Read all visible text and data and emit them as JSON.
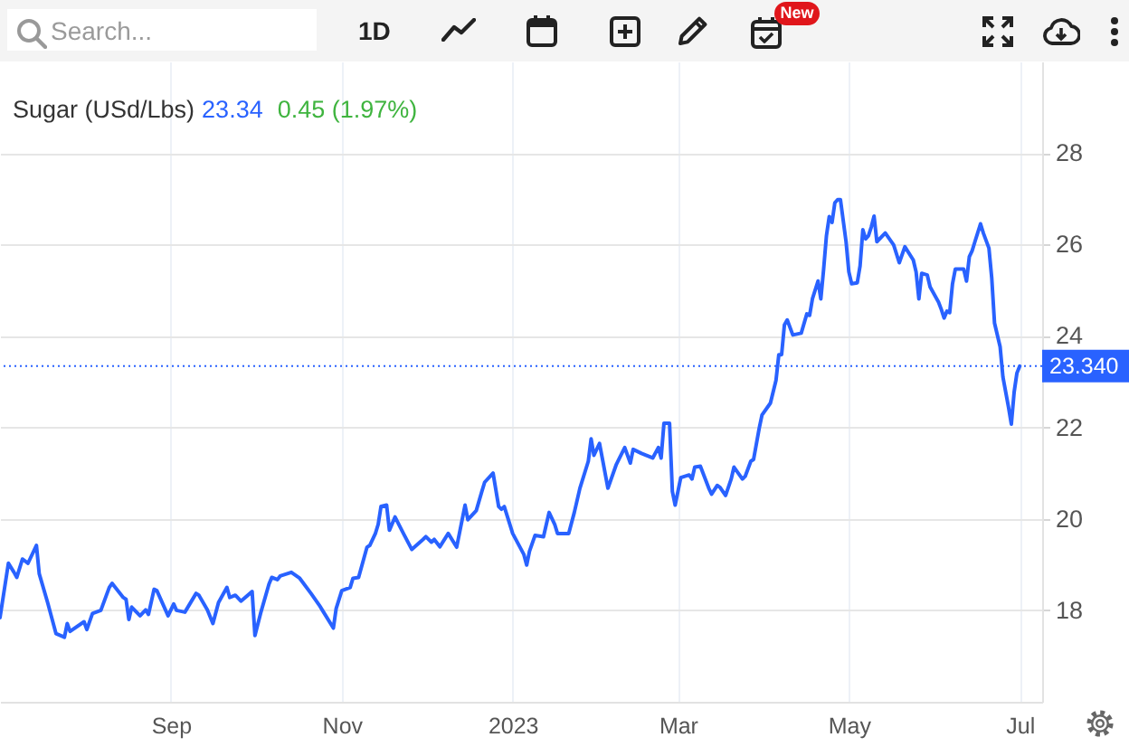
{
  "chart_data": {
    "type": "line",
    "title": "Sugar (USd/Lbs)",
    "annotations": [
      "23.34",
      "0.45 (1.97%)",
      "Search...",
      "1D",
      "New"
    ],
    "x": [
      "2022-07-02",
      "2022-07-05",
      "2022-07-07",
      "2022-07-08",
      "2022-07-10",
      "2022-07-12",
      "2022-07-15",
      "2022-07-16",
      "2022-07-19",
      "2022-07-22",
      "2022-07-25",
      "2022-07-26",
      "2022-07-27",
      "2022-08-01",
      "2022-08-02",
      "2022-08-04",
      "2022-08-07",
      "2022-08-10",
      "2022-08-11",
      "2022-08-15",
      "2022-08-16",
      "2022-08-17",
      "2022-08-18",
      "2022-08-21",
      "2022-08-23",
      "2022-08-24",
      "2022-08-26",
      "2022-08-27",
      "2022-08-31",
      "2022-09-02",
      "2022-09-03",
      "2022-09-06",
      "2022-09-10",
      "2022-09-11",
      "2022-09-14",
      "2022-09-16",
      "2022-09-18",
      "2022-09-21",
      "2022-09-22",
      "2022-09-24",
      "2022-09-26",
      "2022-09-30",
      "2022-10-01",
      "2022-10-03",
      "2022-10-06",
      "2022-10-07",
      "2022-10-09",
      "2022-10-10",
      "2022-10-14",
      "2022-10-17",
      "2022-10-21",
      "2022-10-24",
      "2022-10-25",
      "2022-10-29",
      "2022-10-30",
      "2022-11-01",
      "2022-11-04",
      "2022-11-05",
      "2022-11-07",
      "2022-11-10",
      "2022-11-11",
      "2022-11-13",
      "2022-11-14",
      "2022-11-15",
      "2022-11-17",
      "2022-11-18",
      "2022-11-20",
      "2022-11-23",
      "2022-11-26",
      "2022-11-30",
      "2022-12-01",
      "2022-12-03",
      "2022-12-04",
      "2022-12-06",
      "2022-12-09",
      "2022-12-12",
      "2022-12-15",
      "2022-12-16",
      "2022-12-19",
      "2022-12-21",
      "2022-12-22",
      "2022-12-25",
      "2022-12-27",
      "2022-12-28",
      "2022-12-29",
      "2023-01-01",
      "2023-01-05",
      "2023-01-06",
      "2023-01-07",
      "2023-01-09",
      "2023-01-12",
      "2023-01-14",
      "2023-01-16",
      "2023-01-17",
      "2023-01-21",
      "2023-01-23",
      "2023-01-25",
      "2023-01-28",
      "2023-01-29",
      "2023-01-30",
      "2023-02-01",
      "2023-02-04",
      "2023-02-07",
      "2023-02-10",
      "2023-02-12",
      "2023-02-13",
      "2023-02-16",
      "2023-02-20",
      "2023-02-22",
      "2023-02-23",
      "2023-02-24",
      "2023-02-26",
      "2023-02-27",
      "2023-02-28",
      "2023-03-02",
      "2023-03-05",
      "2023-03-06",
      "2023-03-07",
      "2023-03-09",
      "2023-03-12",
      "2023-03-13",
      "2023-03-15",
      "2023-03-16",
      "2023-03-18",
      "2023-03-20",
      "2023-03-21",
      "2023-03-24",
      "2023-03-25",
      "2023-03-27",
      "2023-03-28",
      "2023-03-30",
      "2023-03-31",
      "2023-04-03",
      "2023-04-05",
      "2023-04-06",
      "2023-04-07",
      "2023-04-08",
      "2023-04-09",
      "2023-04-11",
      "2023-04-14",
      "2023-04-16",
      "2023-04-17",
      "2023-04-18",
      "2023-04-20",
      "2023-04-21",
      "2023-04-22",
      "2023-04-23",
      "2023-04-24",
      "2023-04-25",
      "2023-04-26",
      "2023-04-27",
      "2023-04-28",
      "2023-04-30",
      "2023-05-01",
      "2023-05-02",
      "2023-05-04",
      "2023-05-05",
      "2023-05-06",
      "2023-05-07",
      "2023-05-08",
      "2023-05-09",
      "2023-05-10",
      "2023-05-11",
      "2023-05-14",
      "2023-05-17",
      "2023-05-19",
      "2023-05-21",
      "2023-05-24",
      "2023-05-25",
      "2023-05-26",
      "2023-05-27",
      "2023-05-29",
      "2023-05-30",
      "2023-06-02",
      "2023-06-03",
      "2023-06-04",
      "2023-06-05",
      "2023-06-06",
      "2023-06-07",
      "2023-06-08",
      "2023-06-11",
      "2023-06-12",
      "2023-06-13",
      "2023-06-14",
      "2023-06-15",
      "2023-06-17",
      "2023-06-18",
      "2023-06-20",
      "2023-06-21",
      "2023-06-22",
      "2023-06-24",
      "2023-06-25",
      "2023-06-27",
      "2023-06-28",
      "2023-06-29",
      "2023-06-30",
      "2023-07-01"
    ],
    "series": [
      {
        "color": "#2962ff",
        "values": [
          17.84,
          19.03,
          18.83,
          18.72,
          19.12,
          19.03,
          19.42,
          18.8,
          18.17,
          17.49,
          17.41,
          17.71,
          17.54,
          17.75,
          17.58,
          17.93,
          18.0,
          18.5,
          18.59,
          18.28,
          18.24,
          17.8,
          18.07,
          17.88,
          18.01,
          17.91,
          18.46,
          18.43,
          17.88,
          18.14,
          18.0,
          17.96,
          18.37,
          18.33,
          18.01,
          17.71,
          18.17,
          18.5,
          18.28,
          18.33,
          18.2,
          18.41,
          17.45,
          17.93,
          18.57,
          18.72,
          18.67,
          18.75,
          18.83,
          18.7,
          18.37,
          18.11,
          18.01,
          17.61,
          18.04,
          18.43,
          18.5,
          18.7,
          18.72,
          19.38,
          19.42,
          19.68,
          19.88,
          20.27,
          20.3,
          19.75,
          20.04,
          19.68,
          19.33,
          19.55,
          19.61,
          19.49,
          19.55,
          19.39,
          19.68,
          19.38,
          20.3,
          19.98,
          20.18,
          20.6,
          20.8,
          21.0,
          20.27,
          20.21,
          20.27,
          19.68,
          19.22,
          18.99,
          19.29,
          19.64,
          19.61,
          20.14,
          19.88,
          19.68,
          19.68,
          20.14,
          20.67,
          21.26,
          21.75,
          21.39,
          21.65,
          20.67,
          21.19,
          21.56,
          21.22,
          21.52,
          21.43,
          21.33,
          21.56,
          21.33,
          22.09,
          22.09,
          20.6,
          20.3,
          20.9,
          20.96,
          20.87,
          21.13,
          21.15,
          20.67,
          20.54,
          20.73,
          20.69,
          20.51,
          20.87,
          21.13,
          20.87,
          20.93,
          21.26,
          21.3,
          21.98,
          22.27,
          22.53,
          23.03,
          23.59,
          23.59,
          24.24,
          24.35,
          24.02,
          24.06,
          24.48,
          24.45,
          24.81,
          25.2,
          24.81,
          25.46,
          26.19,
          26.61,
          26.48,
          26.91,
          26.98,
          26.98,
          26.06,
          25.4,
          25.14,
          25.16,
          25.53,
          26.32,
          26.12,
          26.19,
          26.38,
          26.62,
          26.06,
          26.25,
          25.99,
          25.6,
          25.95,
          25.66,
          25.4,
          24.81,
          25.37,
          25.33,
          25.07,
          24.74,
          24.58,
          24.39,
          24.54,
          24.51,
          25.14,
          25.46,
          25.46,
          25.2,
          25.73,
          25.86,
          26.06,
          26.45,
          26.25,
          25.92,
          25.27,
          24.28,
          23.76,
          23.1,
          22.44,
          22.07,
          22.77,
          23.19,
          23.34
        ]
      }
    ],
    "xlim": [
      "2022-07-02",
      "2023-07-09"
    ],
    "xticks": [
      {
        "value": "2022-09-01",
        "label": "Sep"
      },
      {
        "value": "2022-11-01",
        "label": "Nov"
      },
      {
        "value": "2023-01-01",
        "label": "2023"
      },
      {
        "value": "2023-03-01",
        "label": "Mar"
      },
      {
        "value": "2023-05-01",
        "label": "May"
      },
      {
        "value": "2023-07-01",
        "label": "Jul"
      }
    ],
    "ylim": [
      16,
      30
    ],
    "yticks": [
      18,
      20,
      22,
      24,
      26,
      28
    ],
    "grid": true,
    "ref_lines": [
      {
        "axis": "y",
        "value": 23.34,
        "label": "23.340",
        "color": "#2962ff",
        "line_style": "dotted"
      }
    ]
  }
}
